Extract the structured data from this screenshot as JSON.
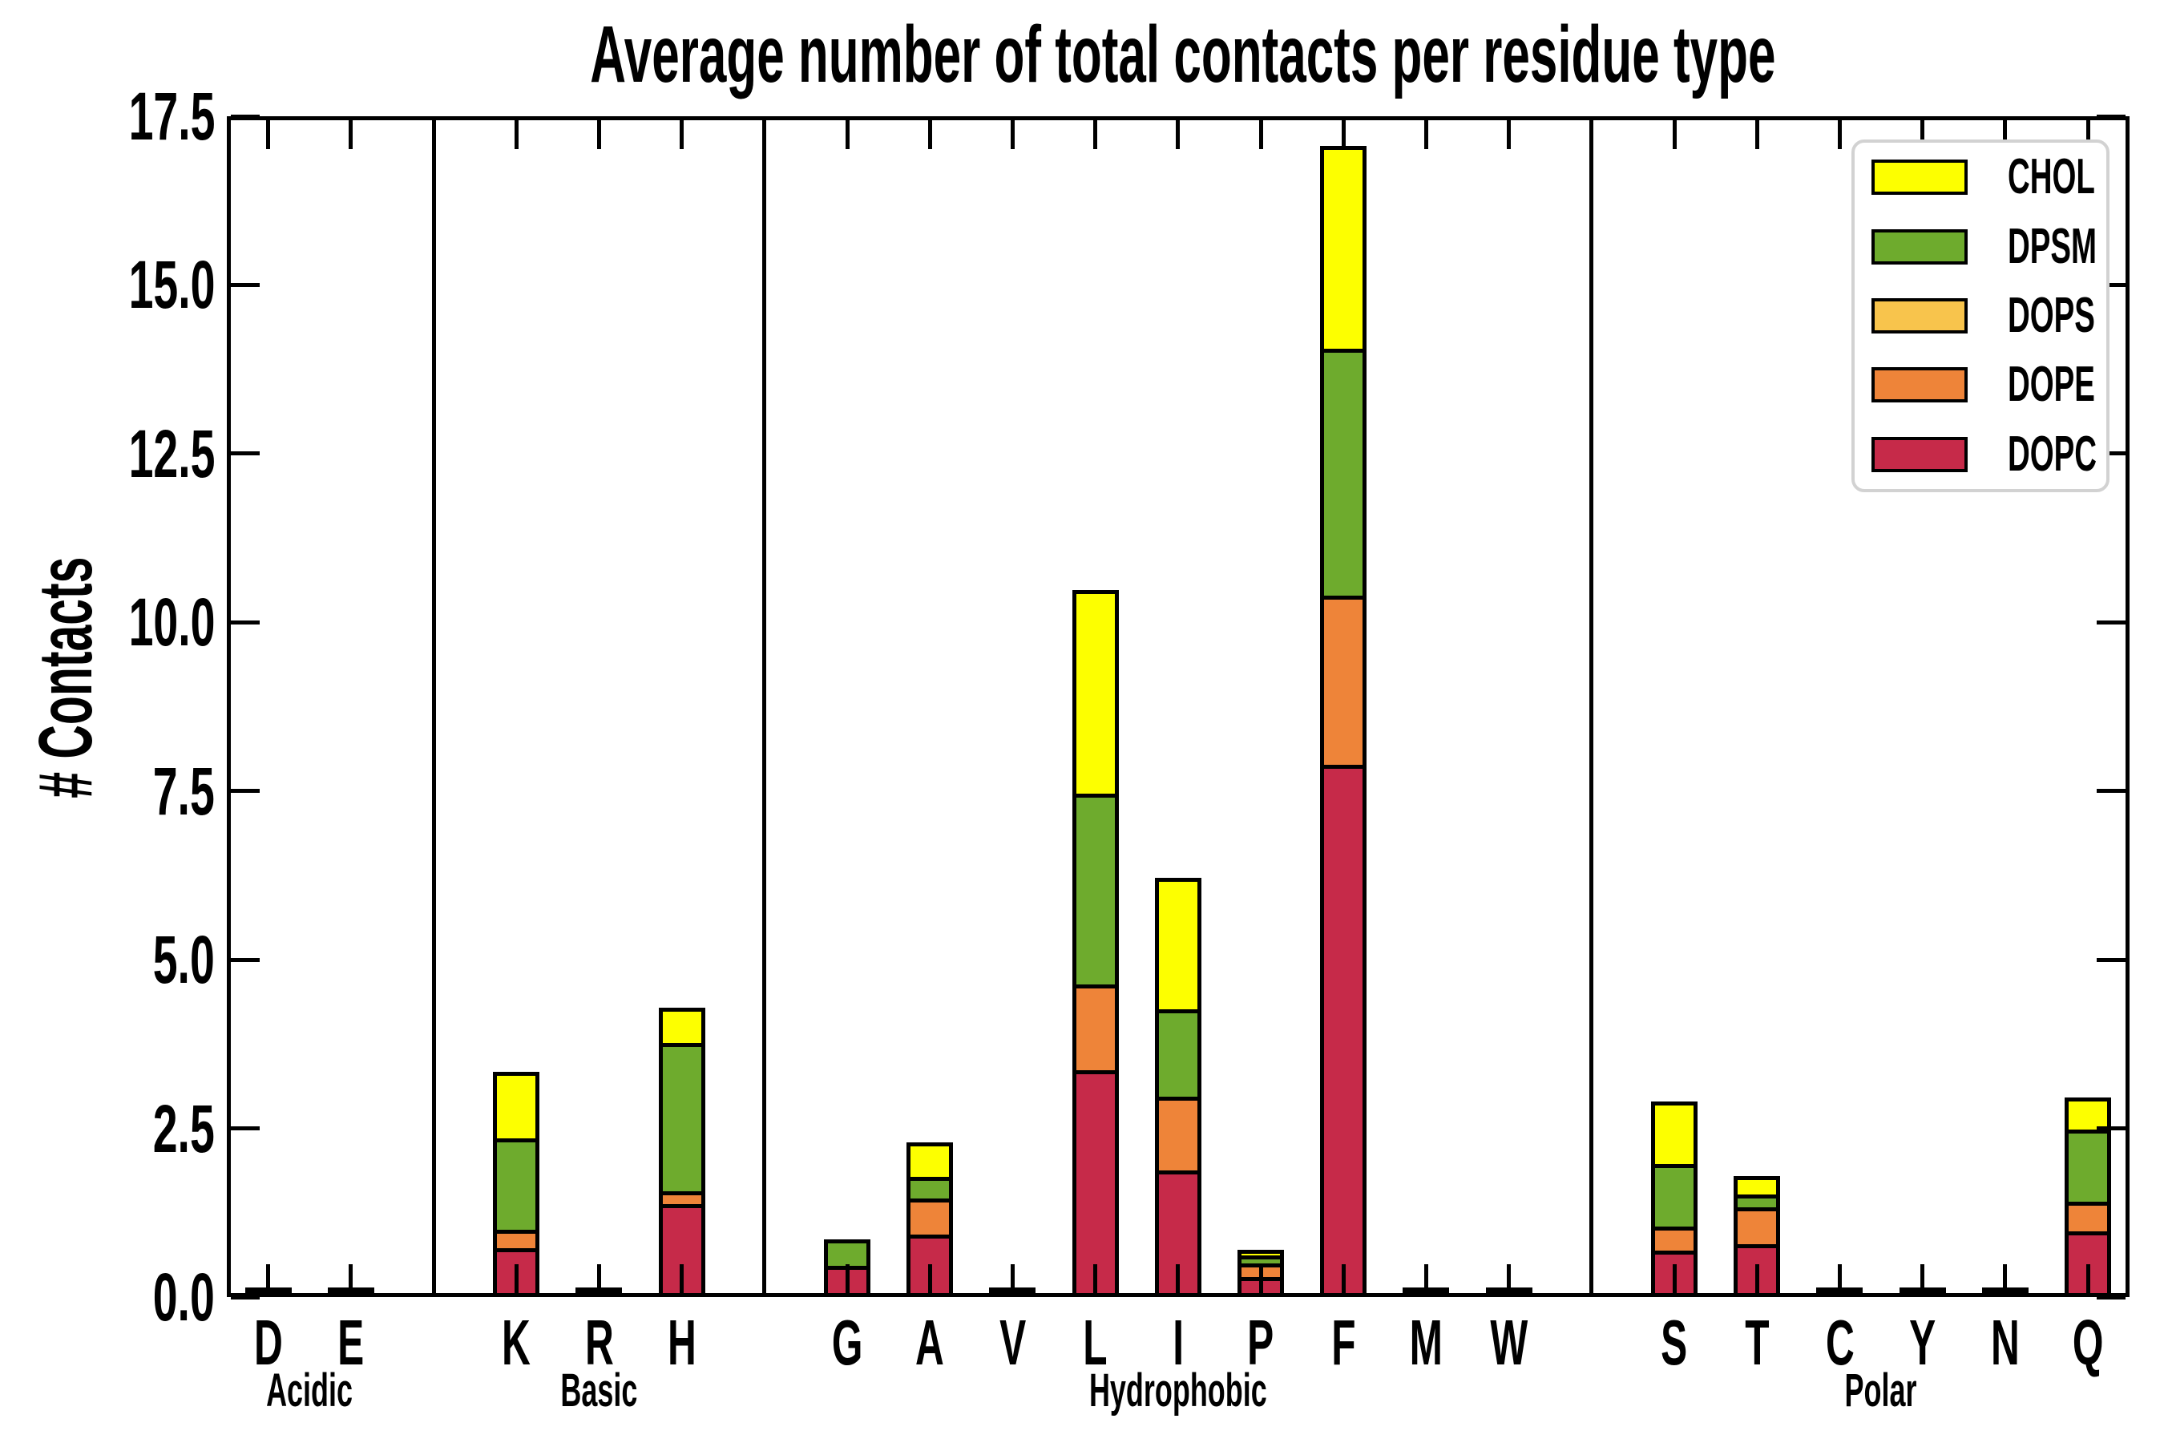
{
  "title": "Average number of total contacts per residue type",
  "y_axis": {
    "label": "# Contacts",
    "tick_labels": [
      "0.0",
      "2.5",
      "5.0",
      "7.5",
      "10.0",
      "12.5",
      "15.0",
      "17.5"
    ],
    "tick_values": [
      0,
      2.5,
      5,
      7.5,
      10,
      12.5,
      15,
      17.5
    ]
  },
  "legend": {
    "entries": [
      {
        "label": "CHOL",
        "color": "#FDFF00"
      },
      {
        "label": "DPSM",
        "color": "#6EAB2D"
      },
      {
        "label": "DOPS",
        "color": "#F8C44C"
      },
      {
        "label": "DOPE",
        "color": "#EE8439"
      },
      {
        "label": "DOPC",
        "color": "#C62A49"
      }
    ]
  },
  "groups": [
    {
      "name": "Acidic",
      "residues": [
        "D",
        "E"
      ]
    },
    {
      "name": "Basic",
      "residues": [
        "K",
        "R",
        "H"
      ]
    },
    {
      "name": "Hydrophobic",
      "residues": [
        "G",
        "A",
        "V",
        "L",
        "I",
        "P",
        "F",
        "M",
        "W"
      ]
    },
    {
      "name": "Polar",
      "residues": [
        "S",
        "T",
        "C",
        "Y",
        "N",
        "Q"
      ]
    }
  ],
  "chart_data": {
    "type": "bar",
    "stacked": true,
    "title": "Average number of total contacts per residue type",
    "xlabel": "",
    "ylabel": "# Contacts",
    "ylim": [
      0,
      17.5
    ],
    "grid": false,
    "legend_position": "upper right",
    "categories": [
      "D",
      "E",
      "K",
      "R",
      "H",
      "G",
      "A",
      "V",
      "L",
      "I",
      "P",
      "F",
      "M",
      "W",
      "S",
      "T",
      "C",
      "Y",
      "N",
      "Q"
    ],
    "series": [
      {
        "name": "DOPC",
        "color": "#C62A49",
        "values": [
          0.02,
          0.02,
          0.7,
          0.03,
          1.35,
          0.43,
          0.9,
          0.02,
          3.33,
          1.85,
          0.27,
          7.86,
          0.02,
          0.03,
          0.66,
          0.75,
          0.01,
          0.02,
          0.02,
          0.94
        ]
      },
      {
        "name": "DOPE",
        "color": "#EE8439",
        "values": [
          0,
          0,
          0.27,
          0,
          0.19,
          0,
          0.53,
          0,
          1.27,
          1.09,
          0.2,
          2.51,
          0,
          0,
          0.35,
          0.55,
          0,
          0,
          0,
          0.45
        ]
      },
      {
        "name": "DOPS",
        "color": "#F8C44C",
        "values": [
          0,
          0,
          0,
          0,
          0,
          0,
          0,
          0,
          0,
          0,
          0,
          0,
          0,
          0,
          0,
          0,
          0,
          0,
          0,
          0
        ]
      },
      {
        "name": "DPSM",
        "color": "#6EAB2D",
        "values": [
          0,
          0,
          1.35,
          0,
          2.2,
          0.4,
          0.32,
          0,
          2.83,
          1.3,
          0.12,
          3.65,
          0,
          0,
          0.93,
          0.19,
          0,
          0,
          0,
          1.06
        ]
      },
      {
        "name": "CHOL",
        "color": "#FDFF00",
        "values": [
          0,
          0,
          1.0,
          0,
          0.53,
          0,
          0.52,
          0,
          3.02,
          1.95,
          0.09,
          3.02,
          0,
          0,
          0.93,
          0.28,
          0,
          0,
          0,
          0.49
        ]
      }
    ],
    "totals": [
      0.02,
      0.02,
      3.32,
      0.03,
      4.27,
      0.83,
      2.27,
      0.02,
      10.45,
      6.19,
      0.68,
      17.04,
      0.02,
      0.03,
      2.87,
      1.77,
      0.01,
      0.02,
      0.02,
      2.94
    ]
  }
}
